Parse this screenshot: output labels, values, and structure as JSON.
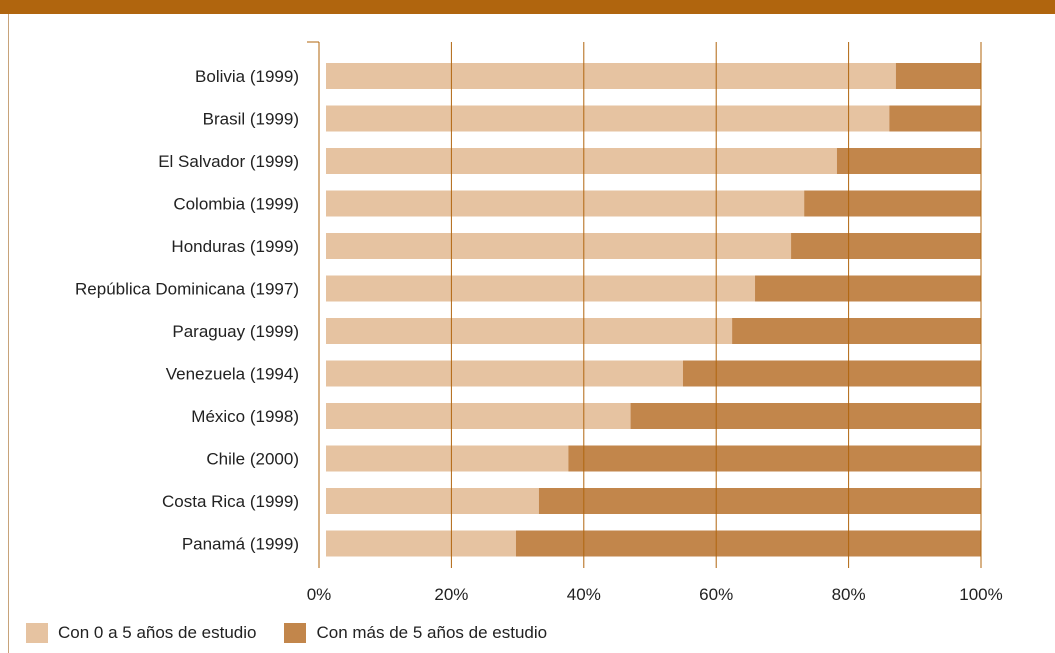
{
  "chart_data": {
    "type": "bar",
    "orientation": "horizontal",
    "stacked": true,
    "categories": [
      "Bolivia (1999)",
      "Brasil (1999)",
      "El Salvador (1999)",
      "Colombia (1999)",
      "Honduras (1999)",
      "República Dominicana (1997)",
      "Paraguay (1999)",
      "Venezuela (1994)",
      "México (1998)",
      "Chile (2000)",
      "Costa Rica (1999)",
      "Panamá (1999)"
    ],
    "series": [
      {
        "name": "Con 0 a 5 años de estudio",
        "color": "#e6c3a1",
        "values": [
          87,
          86,
          78,
          73,
          71,
          65.5,
          62,
          54.5,
          46.5,
          37,
          32.5,
          29
        ]
      },
      {
        "name": "Con más de 5 años de estudio",
        "color": "#c2864b",
        "values": [
          13,
          14,
          22,
          27,
          29,
          34.5,
          38,
          45.5,
          53.5,
          63,
          67.5,
          71
        ]
      }
    ],
    "xlim": [
      0,
      100
    ],
    "x_ticks": [
      "0%",
      "20%",
      "40%",
      "60%",
      "80%",
      "100%"
    ],
    "grid": "vertical",
    "legend_position": "bottom-left",
    "gridline_color": "#b0650e",
    "accent_color": "#b0650e"
  }
}
